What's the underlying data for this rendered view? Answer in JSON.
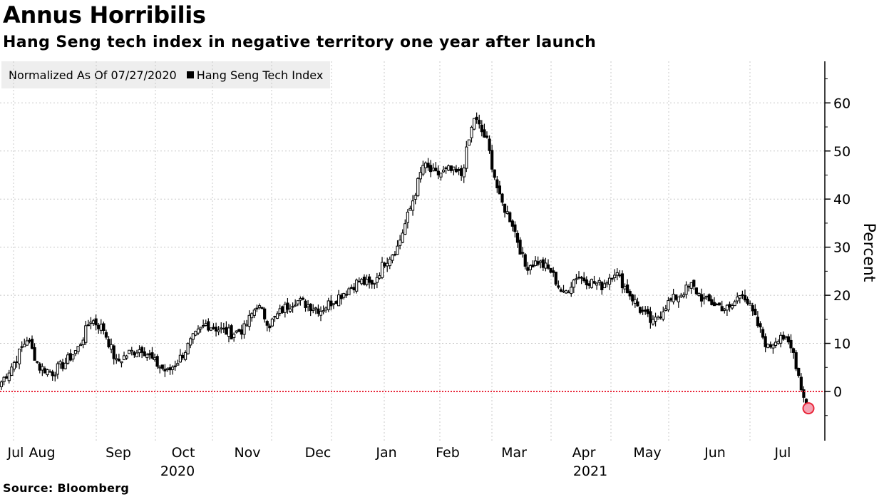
{
  "header": {
    "title": "Annus Horribilis",
    "subtitle": "Hang Seng tech index in negative territory one year after launch"
  },
  "legend": {
    "note": "Normalized As Of 07/27/2020",
    "series_label": "Hang Seng Tech Index"
  },
  "footer": {
    "source": "Source: Bloomberg"
  },
  "colors": {
    "candle": "#000000",
    "zero_line": "#e8273a",
    "marker_fill": "#f4a3b3",
    "marker_stroke": "#e8273a",
    "grid": "#c8c8c8"
  },
  "chart_data": {
    "type": "candlestick",
    "title": "Annus Horribilis",
    "subtitle": "Hang Seng tech index in negative territory one year after launch",
    "ylabel": "Percent",
    "xlabel": "",
    "ylim": [
      -10,
      69
    ],
    "yticks": [
      0,
      10,
      20,
      30,
      40,
      50,
      60
    ],
    "grid": true,
    "legend_position": "top-left",
    "x_month_labels": [
      "Jul",
      "Aug",
      "Sep",
      "Oct",
      "Nov",
      "Dec",
      "Jan",
      "Feb",
      "Mar",
      "Apr",
      "May",
      "Jun",
      "Jul"
    ],
    "x_year_labels": [
      "2020",
      "2021"
    ],
    "reference_line": {
      "y": 0,
      "style": "dotted",
      "color": "#e8273a"
    },
    "last_point_marker": {
      "y": -3.5
    },
    "series": [
      {
        "name": "Hang Seng Tech Index",
        "weekly_close": [
          [
            0,
            2
          ],
          [
            1,
            6
          ],
          [
            2,
            11
          ],
          [
            3,
            5
          ],
          [
            4,
            4
          ],
          [
            5,
            6
          ],
          [
            6,
            9
          ],
          [
            7,
            15
          ],
          [
            8,
            13
          ],
          [
            9,
            6
          ],
          [
            10,
            8
          ],
          [
            11,
            9
          ],
          [
            12,
            6
          ],
          [
            13,
            4
          ],
          [
            14,
            7
          ],
          [
            15,
            11
          ],
          [
            16,
            14
          ],
          [
            17,
            13
          ],
          [
            18,
            12
          ],
          [
            19,
            13
          ],
          [
            20,
            18
          ],
          [
            21,
            14
          ],
          [
            22,
            17
          ],
          [
            23,
            19
          ],
          [
            24,
            18
          ],
          [
            25,
            17
          ],
          [
            26,
            19
          ],
          [
            27,
            21
          ],
          [
            28,
            23
          ],
          [
            29,
            22
          ],
          [
            30,
            27
          ],
          [
            31,
            30
          ],
          [
            32,
            38
          ],
          [
            33,
            47
          ],
          [
            34,
            45
          ],
          [
            35,
            46
          ],
          [
            36,
            45
          ],
          [
            37,
            57
          ],
          [
            38,
            52
          ],
          [
            39,
            40
          ],
          [
            40,
            35
          ],
          [
            41,
            26
          ],
          [
            42,
            27
          ],
          [
            43,
            25
          ],
          [
            44,
            20
          ],
          [
            45,
            24
          ],
          [
            46,
            23
          ],
          [
            47,
            22
          ],
          [
            48,
            25
          ],
          [
            49,
            21
          ],
          [
            50,
            17
          ],
          [
            51,
            14
          ],
          [
            52,
            18
          ],
          [
            53,
            20
          ],
          [
            54,
            22
          ],
          [
            55,
            19
          ],
          [
            56,
            18
          ],
          [
            57,
            17
          ],
          [
            58,
            21
          ],
          [
            59,
            15
          ],
          [
            60,
            9
          ],
          [
            61,
            12
          ],
          [
            62,
            8
          ],
          [
            63,
            -3.5
          ]
        ]
      }
    ]
  }
}
